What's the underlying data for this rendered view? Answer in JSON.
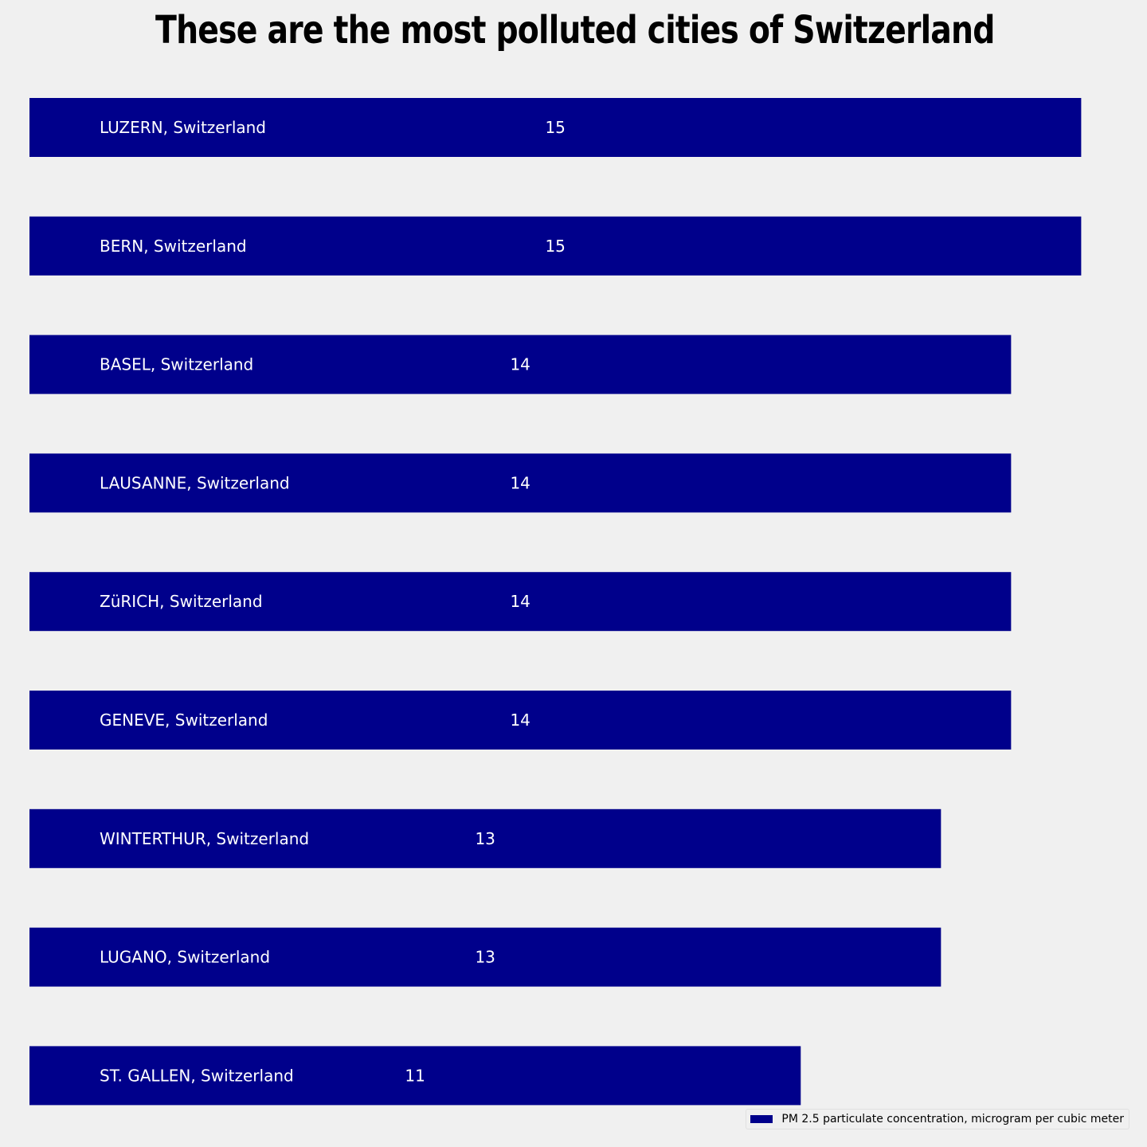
{
  "chart_data": {
    "type": "bar",
    "orientation": "horizontal",
    "title": "These are the most polluted cities of Switzerland",
    "categories": [
      "LUZERN, Switzerland",
      "BERN, Switzerland",
      "BASEL, Switzerland",
      "LAUSANNE, Switzerland",
      "ZüRICH, Switzerland",
      "GENEVE, Switzerland",
      "WINTERTHUR, Switzerland",
      "LUGANO, Switzerland",
      "ST. GALLEN, Switzerland"
    ],
    "series": [
      {
        "name": "PM 2.5 particulate concentration, microgram per cubic meter",
        "values": [
          15,
          15,
          14,
          14,
          14,
          14,
          13,
          13,
          11
        ]
      }
    ],
    "xlim": [
      0,
      15.7
    ],
    "grid": false,
    "legend_position": "bottom-right",
    "bar_color": "#00008b",
    "background_color": "#f0f0f0"
  }
}
